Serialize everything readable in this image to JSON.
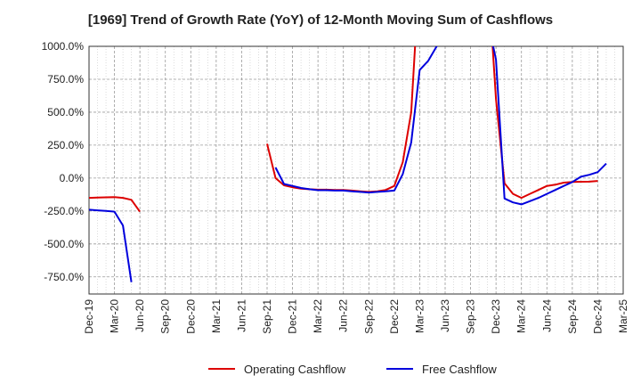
{
  "chart_data": {
    "type": "line",
    "title": "[1969]  Trend of Growth Rate (YoY) of 12-Month Moving Sum of Cashflows",
    "xlabel": "",
    "ylabel": "",
    "x_tick_labels": [
      "Dec-19",
      "Mar-20",
      "Jun-20",
      "Sep-20",
      "Dec-20",
      "Mar-21",
      "Jun-21",
      "Sep-21",
      "Dec-21",
      "Mar-22",
      "Jun-22",
      "Sep-22",
      "Dec-22",
      "Mar-23",
      "Jun-23",
      "Sep-23",
      "Dec-23",
      "Mar-24",
      "Jun-24",
      "Sep-24",
      "Dec-24",
      "Mar-25"
    ],
    "y_tick_labels": [
      "1000.0%",
      "750.0%",
      "500.0%",
      "250.0%",
      "0.0%",
      "-250.0%",
      "-500.0%",
      "-750.0%"
    ],
    "y_ticks": [
      1000,
      750,
      500,
      250,
      0,
      -250,
      -500,
      -750
    ],
    "ylim": [
      -880,
      1000
    ],
    "grid": true,
    "legend_position": "bottom-center",
    "series": [
      {
        "name": "Operating Cashflow",
        "color": "#dd0000",
        "points": [
          [
            "2019-12",
            -150
          ],
          [
            "2020-01",
            -148
          ],
          [
            "2020-02",
            -146
          ],
          [
            "2020-03",
            -145
          ],
          [
            "2020-04",
            -150
          ],
          [
            "2020-05",
            -165
          ],
          [
            "2020-06",
            -255
          ],
          null,
          [
            "2021-09",
            260
          ],
          [
            "2021-10",
            0
          ],
          [
            "2021-11",
            -55
          ],
          [
            "2021-12",
            -70
          ],
          [
            "2022-01",
            -80
          ],
          [
            "2022-02",
            -85
          ],
          [
            "2022-03",
            -88
          ],
          [
            "2022-04",
            -88
          ],
          [
            "2022-05",
            -90
          ],
          [
            "2022-06",
            -90
          ],
          [
            "2022-07",
            -95
          ],
          [
            "2022-08",
            -100
          ],
          [
            "2022-09",
            -105
          ],
          [
            "2022-10",
            -100
          ],
          [
            "2022-11",
            -90
          ],
          [
            "2022-12",
            -60
          ],
          [
            "2023-01",
            120
          ],
          [
            "2023-02",
            500
          ],
          [
            "2023-03",
            1600
          ],
          null,
          [
            "2023-11",
            1600
          ],
          [
            "2023-12",
            600
          ],
          [
            "2024-01",
            -40
          ],
          [
            "2024-02",
            -120
          ],
          [
            "2024-03",
            -150
          ],
          [
            "2024-04",
            -120
          ],
          [
            "2024-05",
            -90
          ],
          [
            "2024-06",
            -60
          ],
          [
            "2024-07",
            -50
          ],
          [
            "2024-08",
            -35
          ],
          [
            "2024-09",
            -30
          ],
          [
            "2024-10",
            -28
          ],
          [
            "2024-11",
            -27
          ],
          [
            "2024-12",
            -22
          ]
        ]
      },
      {
        "name": "Free Cashflow",
        "color": "#0000dd",
        "points": [
          [
            "2019-12",
            -240
          ],
          [
            "2020-01",
            -245
          ],
          [
            "2020-02",
            -250
          ],
          [
            "2020-03",
            -255
          ],
          [
            "2020-04",
            -360
          ],
          [
            "2020-05",
            -790
          ],
          null,
          [
            "2021-10",
            80
          ],
          [
            "2021-11",
            -45
          ],
          [
            "2021-12",
            -60
          ],
          [
            "2022-01",
            -75
          ],
          [
            "2022-02",
            -85
          ],
          [
            "2022-03",
            -92
          ],
          [
            "2022-04",
            -92
          ],
          [
            "2022-05",
            -95
          ],
          [
            "2022-06",
            -95
          ],
          [
            "2022-07",
            -100
          ],
          [
            "2022-08",
            -105
          ],
          [
            "2022-09",
            -110
          ],
          [
            "2022-10",
            -105
          ],
          [
            "2022-11",
            -100
          ],
          [
            "2022-12",
            -95
          ],
          [
            "2023-01",
            30
          ],
          [
            "2023-02",
            270
          ],
          [
            "2023-03",
            820
          ],
          [
            "2023-04",
            890
          ],
          [
            "2023-05",
            1000
          ],
          [
            "2023-06",
            1150
          ],
          null,
          [
            "2023-11",
            1200
          ],
          [
            "2023-12",
            900
          ],
          [
            "2024-01",
            -155
          ],
          [
            "2024-02",
            -185
          ],
          [
            "2024-03",
            -200
          ],
          [
            "2024-04",
            -175
          ],
          [
            "2024-05",
            -150
          ],
          [
            "2024-06",
            -120
          ],
          [
            "2024-07",
            -90
          ],
          [
            "2024-08",
            -60
          ],
          [
            "2024-09",
            -30
          ],
          [
            "2024-10",
            10
          ],
          [
            "2024-11",
            25
          ],
          [
            "2024-12",
            45
          ],
          [
            "2025-01",
            110
          ]
        ]
      }
    ]
  }
}
